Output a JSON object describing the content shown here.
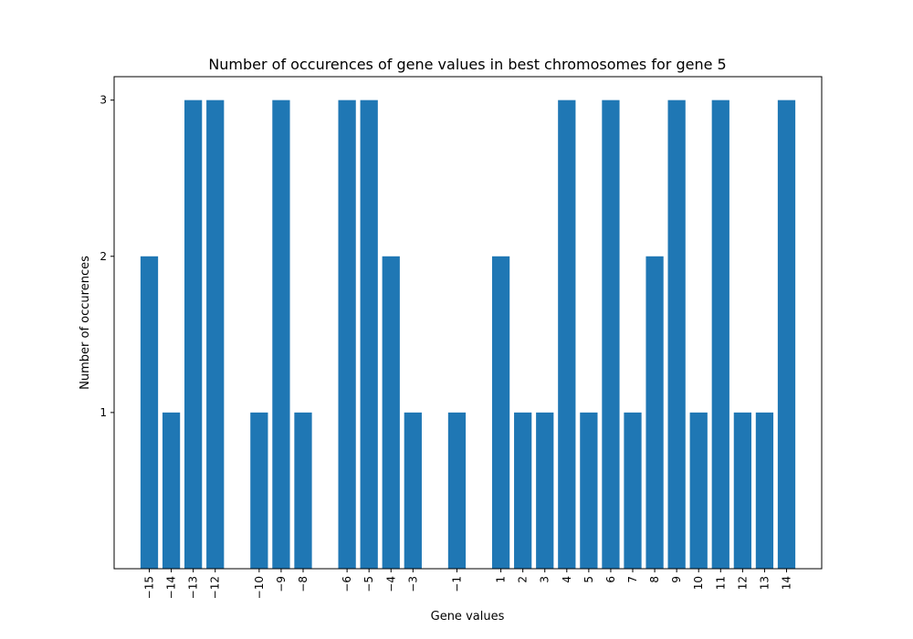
{
  "chart_data": {
    "type": "bar",
    "title": "Number of occurences of gene values in best chromosomes for gene 5",
    "xlabel": "Gene values",
    "ylabel": "Number of occurences",
    "x": [
      -15,
      -14,
      -13,
      -12,
      -10,
      -9,
      -8,
      -6,
      -5,
      -4,
      -3,
      -1,
      1,
      2,
      3,
      4,
      5,
      6,
      7,
      8,
      9,
      10,
      11,
      12,
      13,
      14
    ],
    "tick_labels": [
      "−15",
      "−14",
      "−13",
      "−12",
      "−10",
      "−9",
      "−8",
      "−6",
      "−5",
      "−4",
      "−3",
      "−1",
      "1",
      "2",
      "3",
      "4",
      "5",
      "6",
      "7",
      "8",
      "9",
      "10",
      "11",
      "12",
      "13",
      "14"
    ],
    "values": [
      2,
      1,
      3,
      3,
      1,
      3,
      1,
      3,
      3,
      2,
      1,
      1,
      2,
      1,
      1,
      3,
      1,
      3,
      1,
      2,
      3,
      1,
      3,
      1,
      1,
      3
    ],
    "xlim": [
      -16.6,
      15.6
    ],
    "ylim": [
      0,
      3.15
    ],
    "yticks": [
      1,
      2,
      3
    ],
    "bar_color": "#1f77b4",
    "grid": false
  }
}
